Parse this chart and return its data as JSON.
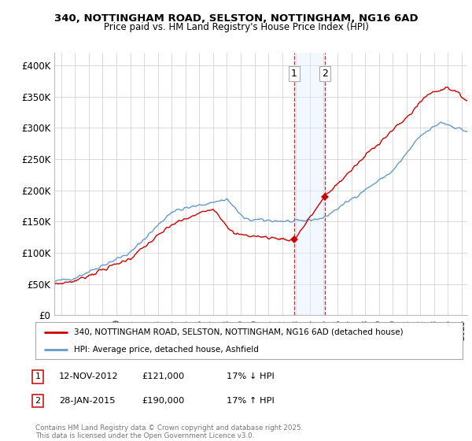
{
  "title1": "340, NOTTINGHAM ROAD, SELSTON, NOTTINGHAM, NG16 6AD",
  "title2": "Price paid vs. HM Land Registry's House Price Index (HPI)",
  "ylabel_ticks": [
    "£0",
    "£50K",
    "£100K",
    "£150K",
    "£200K",
    "£250K",
    "£300K",
    "£350K",
    "£400K"
  ],
  "ytick_values": [
    0,
    50000,
    100000,
    150000,
    200000,
    250000,
    300000,
    350000,
    400000
  ],
  "ylim": [
    0,
    420000
  ],
  "xlim_start": 1995.5,
  "xlim_end": 2025.4,
  "sale1_x": 2012.87,
  "sale1_y": 121000,
  "sale2_x": 2015.08,
  "sale2_y": 190000,
  "vline1_x": 2012.87,
  "vline2_x": 2015.08,
  "shade_start": 2012.87,
  "shade_end": 2015.08,
  "legend_line1": "340, NOTTINGHAM ROAD, SELSTON, NOTTINGHAM, NG16 6AD (detached house)",
  "legend_line2": "HPI: Average price, detached house, Ashfield",
  "annotation1_date": "12-NOV-2012",
  "annotation1_price": "£121,000",
  "annotation1_hpi": "17% ↓ HPI",
  "annotation2_date": "28-JAN-2015",
  "annotation2_price": "£190,000",
  "annotation2_hpi": "17% ↑ HPI",
  "footer": "Contains HM Land Registry data © Crown copyright and database right 2025.\nThis data is licensed under the Open Government Licence v3.0.",
  "line_color_red": "#cc0000",
  "line_color_blue": "#6699cc",
  "shade_color": "#ddeeff",
  "vline_color": "#cc0000",
  "bg_color": "#ffffff",
  "grid_color": "#cccccc"
}
